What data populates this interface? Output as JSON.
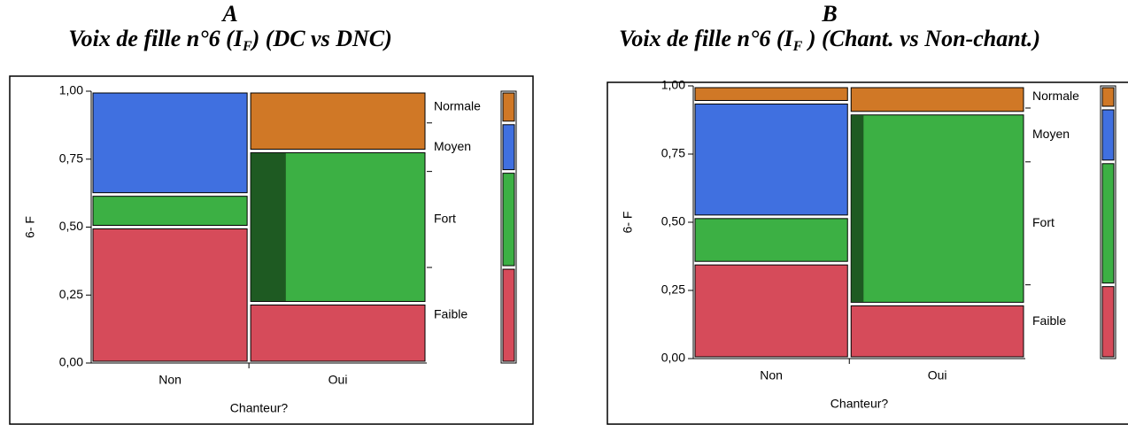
{
  "chart_data": [
    {
      "type": "mosaic",
      "letter": "A",
      "title": "Voix de fille n°6 (I",
      "title_sub": "F",
      "title_end": ") (DC vs DNC)",
      "x_label": "Chanteur?",
      "y_label": "6- F",
      "categories": [
        "Non",
        "Oui"
      ],
      "column_widths": [
        0.47,
        0.53
      ],
      "series": [
        {
          "name": "Faible",
          "color": "#d64b5a",
          "values": [
            0.5,
            0.22
          ]
        },
        {
          "name": "Fort",
          "color": "#3cb044",
          "values": [
            0.12,
            0.56
          ]
        },
        {
          "name": "Moyen",
          "color": "#4070e0",
          "values": [
            0.38,
            0
          ]
        },
        {
          "name": "Normale",
          "color": "#d07826",
          "values": [
            0,
            0.22
          ]
        }
      ],
      "highlight": {
        "category": 1,
        "series": 1,
        "fraction": 0.2,
        "color": "#1e5a22"
      },
      "ylim": [
        0,
        1
      ],
      "yticks": [
        {
          "value": 0,
          "label": "0,00"
        },
        {
          "value": 0.25,
          "label": "0,25"
        },
        {
          "value": 0.5,
          "label": "0,50"
        },
        {
          "value": 0.75,
          "label": "0,75"
        },
        {
          "value": 1,
          "label": "1,00"
        }
      ]
    },
    {
      "type": "mosaic",
      "letter": "B",
      "title": "Voix de fille n°6 (I",
      "title_sub": "F",
      "title_end": " ) (Chant. vs Non-chant.)",
      "x_label": "Chanteur?",
      "y_label": "6- F",
      "categories": [
        "Non",
        "Oui"
      ],
      "column_widths": [
        0.47,
        0.53
      ],
      "series": [
        {
          "name": "Faible",
          "color": "#d64b5a",
          "values": [
            0.35,
            0.2
          ]
        },
        {
          "name": "Fort",
          "color": "#3cb044",
          "values": [
            0.17,
            0.7
          ]
        },
        {
          "name": "Moyen",
          "color": "#4070e0",
          "values": [
            0.42,
            0
          ]
        },
        {
          "name": "Normale",
          "color": "#d07826",
          "values": [
            0.06,
            0.1
          ]
        }
      ],
      "highlight": {
        "category": 1,
        "series": 1,
        "fraction": 0.07,
        "color": "#1e5a22"
      },
      "ylim": [
        0,
        1
      ],
      "yticks": [
        {
          "value": 0,
          "label": "0,00"
        },
        {
          "value": 0.25,
          "label": "0,25"
        },
        {
          "value": 0.5,
          "label": "0,50"
        },
        {
          "value": 0.75,
          "label": "0,75"
        },
        {
          "value": 1,
          "label": "1,00"
        }
      ]
    }
  ]
}
